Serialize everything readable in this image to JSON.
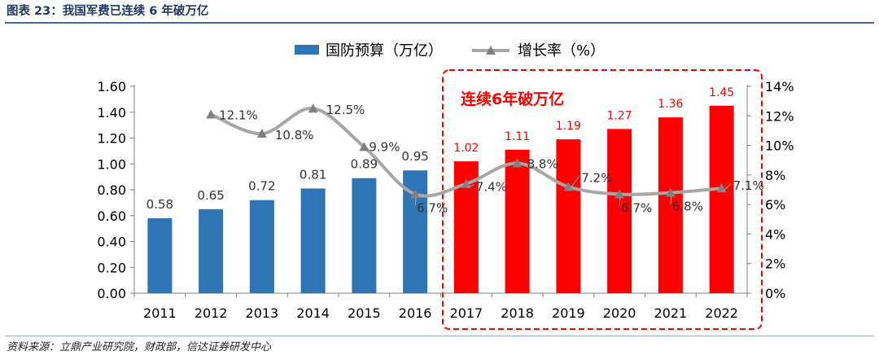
{
  "header": {
    "title": "图表 23：我国军费已连续 6 年破万亿"
  },
  "footer": {
    "source": "资料来源：立鼎产业研究院，财政部，信达证券研发中心"
  },
  "annotation": {
    "text": "连续6年破万亿"
  },
  "colors": {
    "blue": "#2e75b6",
    "red": "#ff0000",
    "line": "#a6a6a6",
    "marker": "#808080",
    "text": "#333333",
    "frame": "#ff0000"
  },
  "chart_data": {
    "type": "bar",
    "categories": [
      "2011",
      "2012",
      "2013",
      "2014",
      "2015",
      "2016",
      "2017",
      "2018",
      "2019",
      "2020",
      "2021",
      "2022"
    ],
    "series": [
      {
        "name": "国防预算（万亿）",
        "type": "bar",
        "axis": "left",
        "values": [
          0.58,
          0.65,
          0.72,
          0.81,
          0.89,
          0.95,
          1.02,
          1.11,
          1.19,
          1.27,
          1.36,
          1.45
        ],
        "labels": [
          "0.58",
          "0.65",
          "0.72",
          "0.81",
          "0.89",
          "0.95",
          "1.02",
          "1.11",
          "1.19",
          "1.27",
          "1.36",
          "1.45"
        ]
      },
      {
        "name": "增长率（%）",
        "type": "line",
        "axis": "right",
        "values": [
          null,
          12.1,
          10.8,
          12.5,
          9.9,
          6.7,
          7.4,
          8.8,
          7.2,
          6.7,
          6.8,
          7.1
        ],
        "labels": [
          "",
          "12.1%",
          "10.8%",
          "12.5%",
          "9.9%",
          "6.7%",
          "7.4%",
          "8.8%",
          "7.2%",
          "6.7%",
          "6.8%",
          "7.1%"
        ]
      }
    ],
    "highlight_from_year": "2017",
    "y_left": {
      "min": 0,
      "max": 1.6,
      "ticks": [
        "0.00",
        "0.20",
        "0.40",
        "0.60",
        "0.80",
        "1.00",
        "1.20",
        "1.40",
        "1.60"
      ]
    },
    "y_right": {
      "min": 0,
      "max": 14,
      "ticks": [
        "0%",
        "2%",
        "4%",
        "6%",
        "8%",
        "10%",
        "12%",
        "14%"
      ]
    },
    "legend_position": "top-center",
    "grid": false
  }
}
